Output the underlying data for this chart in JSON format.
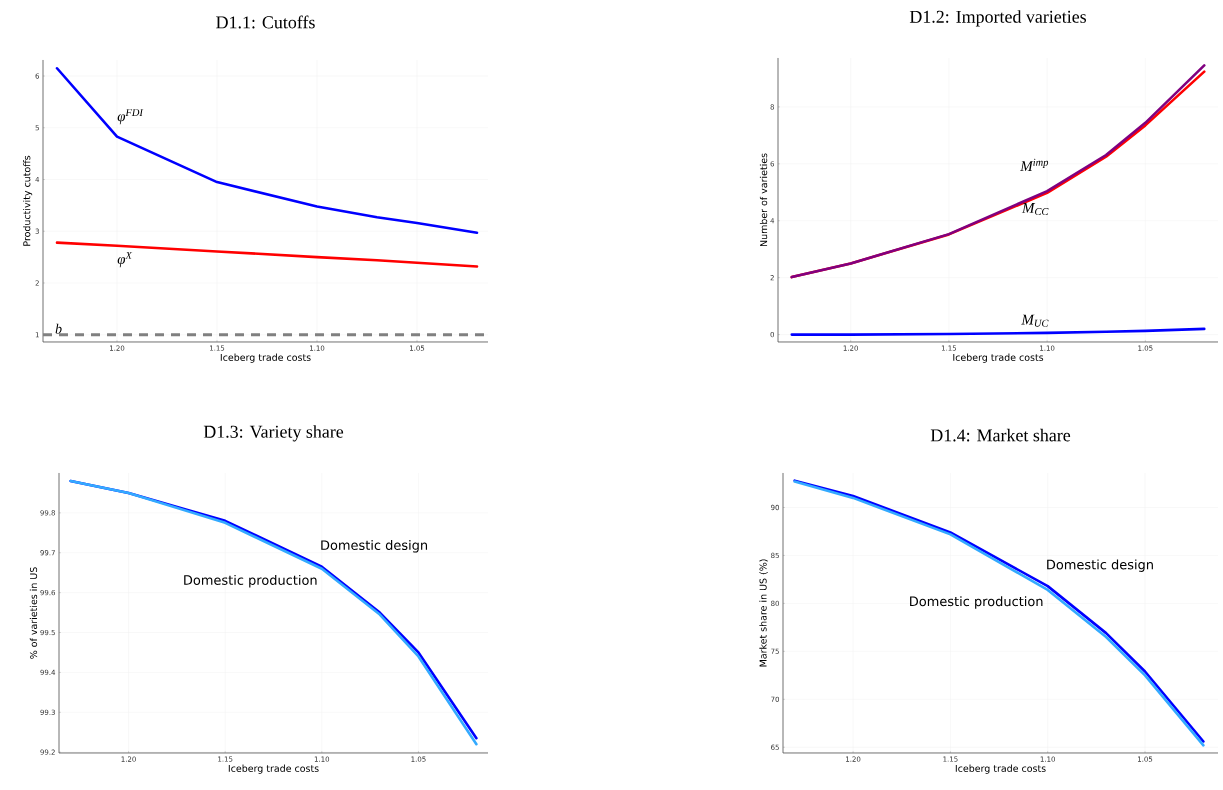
{
  "chart_data": [
    {
      "type": "line",
      "title": "D1.1: Cutoffs",
      "xlabel": "Iceberg trade costs",
      "ylabel": "Productivity cutoffs",
      "x": [
        1.23,
        1.2,
        1.15,
        1.1,
        1.07,
        1.05,
        1.02
      ],
      "series": [
        {
          "name": "φ$^{FDI}$",
          "color": "#0000ff",
          "values": [
            6.15,
            4.83,
            3.95,
            3.48,
            3.27,
            3.16,
            2.97
          ]
        },
        {
          "name": "φ$^{X}$",
          "color": "#ff0000",
          "values": [
            2.78,
            2.72,
            2.61,
            2.5,
            2.44,
            2.39,
            2.32
          ]
        }
      ],
      "xlim": [
        1.237,
        1.0145
      ],
      "xticks": [
        {
          "value": 1.2,
          "label": "1.20"
        },
        {
          "value": 1.15,
          "label": "1.15"
        },
        {
          "value": 1.1,
          "label": "1.10"
        },
        {
          "value": 1.05,
          "label": "1.05"
        }
      ],
      "ylim": [
        0.86,
        6.31
      ],
      "yticks": [
        1,
        2,
        3,
        4,
        5,
        6
      ],
      "grid": true,
      "ref_lines": [
        {
          "axis": "y",
          "value": 1,
          "label": "b",
          "color": "#808080",
          "line_style": "dashed"
        }
      ]
    },
    {
      "type": "line",
      "title": "D1.2: Imported varieties",
      "xlabel": "Iceberg trade costs",
      "ylabel": "Number of varieties",
      "x": [
        1.23,
        1.2,
        1.15,
        1.1,
        1.07,
        1.05,
        1.02
      ],
      "series": [
        {
          "name": "M$_{UC}$",
          "color": "#0000ff",
          "values": [
            0,
            0,
            0.02,
            0.06,
            0.1,
            0.13,
            0.2
          ]
        },
        {
          "name": "M$_{CC}$",
          "color": "#ff0000",
          "values": [
            2.02,
            2.5,
            3.52,
            4.98,
            6.25,
            7.35,
            9.24
          ]
        },
        {
          "name": "M$^{imp}$",
          "color": "#800080",
          "values": [
            2.02,
            2.5,
            3.53,
            5.04,
            6.31,
            7.44,
            9.46
          ]
        }
      ],
      "xlim": [
        1.237,
        1.013
      ],
      "xticks": [
        {
          "value": 1.2,
          "label": "1.20"
        },
        {
          "value": 1.15,
          "label": "1.15"
        },
        {
          "value": 1.1,
          "label": "1.10"
        },
        {
          "value": 1.05,
          "label": "1.05"
        }
      ],
      "ylim": [
        -0.26,
        9.72
      ],
      "yticks": [
        0,
        2,
        4,
        6,
        8
      ],
      "grid": true
    },
    {
      "type": "line",
      "title": "D1.3: Variety share",
      "xlabel": "Iceberg trade costs",
      "ylabel": "% of varieties in US",
      "x": [
        1.23,
        1.2,
        1.15,
        1.1,
        1.07,
        1.05,
        1.02
      ],
      "series": [
        {
          "name": "Domestic design",
          "color": "#0000ff",
          "values": [
            99.88,
            99.85,
            99.78,
            99.665,
            99.55,
            99.45,
            99.235
          ]
        },
        {
          "name": "Domestic production",
          "color": "#33aaff",
          "values": [
            99.88,
            99.85,
            99.775,
            99.66,
            99.545,
            99.44,
            99.22
          ]
        }
      ],
      "xlim": [
        1.236,
        1.014
      ],
      "xticks": [
        {
          "value": 1.2,
          "label": "1.20"
        },
        {
          "value": 1.15,
          "label": "1.15"
        },
        {
          "value": 1.1,
          "label": "1.10"
        },
        {
          "value": 1.05,
          "label": "1.05"
        }
      ],
      "ylim": [
        99.198,
        99.9
      ],
      "yticks": [
        99.2,
        99.3,
        99.4,
        99.5,
        99.6,
        99.7,
        99.8
      ],
      "grid": true
    },
    {
      "type": "line",
      "title": "D1.4: Market share",
      "xlabel": "Iceberg trade costs",
      "ylabel": "Market share in US (%)",
      "x": [
        1.23,
        1.2,
        1.15,
        1.1,
        1.07,
        1.05,
        1.02
      ],
      "series": [
        {
          "name": "Domestic design",
          "color": "#0000ff",
          "values": [
            92.8,
            91.2,
            87.4,
            81.8,
            76.9,
            72.9,
            65.6
          ]
        },
        {
          "name": "Domestic production",
          "color": "#33aaff",
          "values": [
            92.7,
            91.0,
            87.2,
            81.4,
            76.5,
            72.5,
            65.2
          ]
        }
      ],
      "xlim": [
        1.236,
        1.0125
      ],
      "xticks": [
        {
          "value": 1.2,
          "label": "1.20"
        },
        {
          "value": 1.15,
          "label": "1.15"
        },
        {
          "value": 1.1,
          "label": "1.10"
        },
        {
          "value": 1.05,
          "label": "1.05"
        }
      ],
      "ylim": [
        64.4,
        93.6
      ],
      "yticks": [
        65,
        70,
        75,
        80,
        85,
        90
      ],
      "grid": true
    }
  ]
}
